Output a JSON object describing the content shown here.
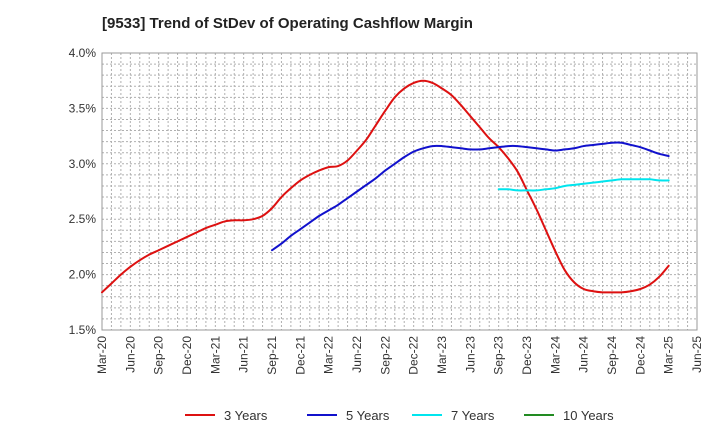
{
  "chart_data": {
    "type": "line",
    "title": "[9533]  Trend of StDev of Operating Cashflow Margin",
    "xlabel": "",
    "ylabel": "",
    "x_ticks": [
      "Mar-20",
      "Jun-20",
      "Sep-20",
      "Dec-20",
      "Mar-21",
      "Jun-21",
      "Sep-21",
      "Dec-21",
      "Mar-22",
      "Jun-22",
      "Sep-22",
      "Dec-22",
      "Mar-23",
      "Jun-23",
      "Sep-23",
      "Dec-23",
      "Mar-24",
      "Jun-24",
      "Sep-24",
      "Dec-24",
      "Mar-25",
      "Jun-25"
    ],
    "y_ticks": [
      "1.5%",
      "2.0%",
      "2.5%",
      "3.0%",
      "3.5%",
      "4.0%"
    ],
    "ylim": [
      1.5,
      4.0
    ],
    "y_unit": "%",
    "grid": true,
    "legend_position": "bottom",
    "series": [
      {
        "name": "3 Years",
        "color": "#dd1111",
        "x": [
          "Mar-20",
          "Apr-20",
          "May-20",
          "Jun-20",
          "Jul-20",
          "Aug-20",
          "Sep-20",
          "Oct-20",
          "Nov-20",
          "Dec-20",
          "Jan-21",
          "Feb-21",
          "Mar-21",
          "Apr-21",
          "May-21",
          "Jun-21",
          "Jul-21",
          "Aug-21",
          "Sep-21",
          "Oct-21",
          "Nov-21",
          "Dec-21",
          "Jan-22",
          "Feb-22",
          "Mar-22",
          "Apr-22",
          "May-22",
          "Jun-22",
          "Jul-22",
          "Aug-22",
          "Sep-22",
          "Oct-22",
          "Nov-22",
          "Dec-22",
          "Jan-23",
          "Feb-23",
          "Mar-23",
          "Apr-23",
          "May-23",
          "Jun-23",
          "Jul-23",
          "Aug-23",
          "Sep-23",
          "Oct-23",
          "Nov-23",
          "Dec-23",
          "Jan-24",
          "Feb-24",
          "Mar-24",
          "Apr-24",
          "May-24",
          "Jun-24",
          "Jul-24",
          "Aug-24",
          "Sep-24",
          "Oct-24",
          "Nov-24",
          "Dec-24",
          "Jan-25",
          "Feb-25",
          "Mar-25"
        ],
        "values": [
          1.84,
          1.92,
          2.0,
          2.07,
          2.13,
          2.18,
          2.22,
          2.26,
          2.3,
          2.34,
          2.38,
          2.42,
          2.45,
          2.48,
          2.49,
          2.49,
          2.5,
          2.53,
          2.6,
          2.7,
          2.78,
          2.85,
          2.9,
          2.94,
          2.97,
          2.98,
          3.03,
          3.12,
          3.22,
          3.35,
          3.48,
          3.6,
          3.68,
          3.73,
          3.75,
          3.73,
          3.68,
          3.62,
          3.53,
          3.43,
          3.33,
          3.23,
          3.15,
          3.05,
          2.93,
          2.76,
          2.59,
          2.4,
          2.21,
          2.04,
          1.93,
          1.87,
          1.85,
          1.84,
          1.84,
          1.84,
          1.85,
          1.87,
          1.91,
          1.98,
          2.08
        ]
      },
      {
        "name": "5 Years",
        "color": "#1111cc",
        "x": [
          "Sep-21",
          "Oct-21",
          "Nov-21",
          "Dec-21",
          "Jan-22",
          "Feb-22",
          "Mar-22",
          "Apr-22",
          "May-22",
          "Jun-22",
          "Jul-22",
          "Aug-22",
          "Sep-22",
          "Oct-22",
          "Nov-22",
          "Dec-22",
          "Jan-23",
          "Feb-23",
          "Mar-23",
          "Apr-23",
          "May-23",
          "Jun-23",
          "Jul-23",
          "Aug-23",
          "Sep-23",
          "Oct-23",
          "Nov-23",
          "Dec-23",
          "Jan-24",
          "Feb-24",
          "Mar-24",
          "Apr-24",
          "May-24",
          "Jun-24",
          "Jul-24",
          "Aug-24",
          "Sep-24",
          "Oct-24",
          "Nov-24",
          "Dec-24",
          "Jan-25",
          "Feb-25",
          "Mar-25"
        ],
        "values": [
          2.22,
          2.28,
          2.35,
          2.41,
          2.47,
          2.53,
          2.58,
          2.63,
          2.69,
          2.75,
          2.81,
          2.87,
          2.94,
          3.0,
          3.06,
          3.11,
          3.14,
          3.16,
          3.16,
          3.15,
          3.14,
          3.13,
          3.13,
          3.14,
          3.15,
          3.16,
          3.16,
          3.15,
          3.14,
          3.13,
          3.12,
          3.13,
          3.14,
          3.16,
          3.17,
          3.18,
          3.19,
          3.19,
          3.17,
          3.15,
          3.12,
          3.09,
          3.07
        ]
      },
      {
        "name": "7 Years",
        "color": "#00e5ee",
        "x": [
          "Sep-23",
          "Oct-23",
          "Nov-23",
          "Dec-23",
          "Jan-24",
          "Feb-24",
          "Mar-24",
          "Apr-24",
          "May-24",
          "Jun-24",
          "Jul-24",
          "Aug-24",
          "Sep-24",
          "Oct-24",
          "Nov-24",
          "Dec-24",
          "Jan-25",
          "Feb-25",
          "Mar-25"
        ],
        "values": [
          2.77,
          2.77,
          2.76,
          2.76,
          2.76,
          2.77,
          2.78,
          2.8,
          2.81,
          2.82,
          2.83,
          2.84,
          2.85,
          2.86,
          2.86,
          2.86,
          2.86,
          2.85,
          2.85
        ]
      },
      {
        "name": "10 Years",
        "color": "#228b22",
        "x": [],
        "values": []
      }
    ]
  }
}
